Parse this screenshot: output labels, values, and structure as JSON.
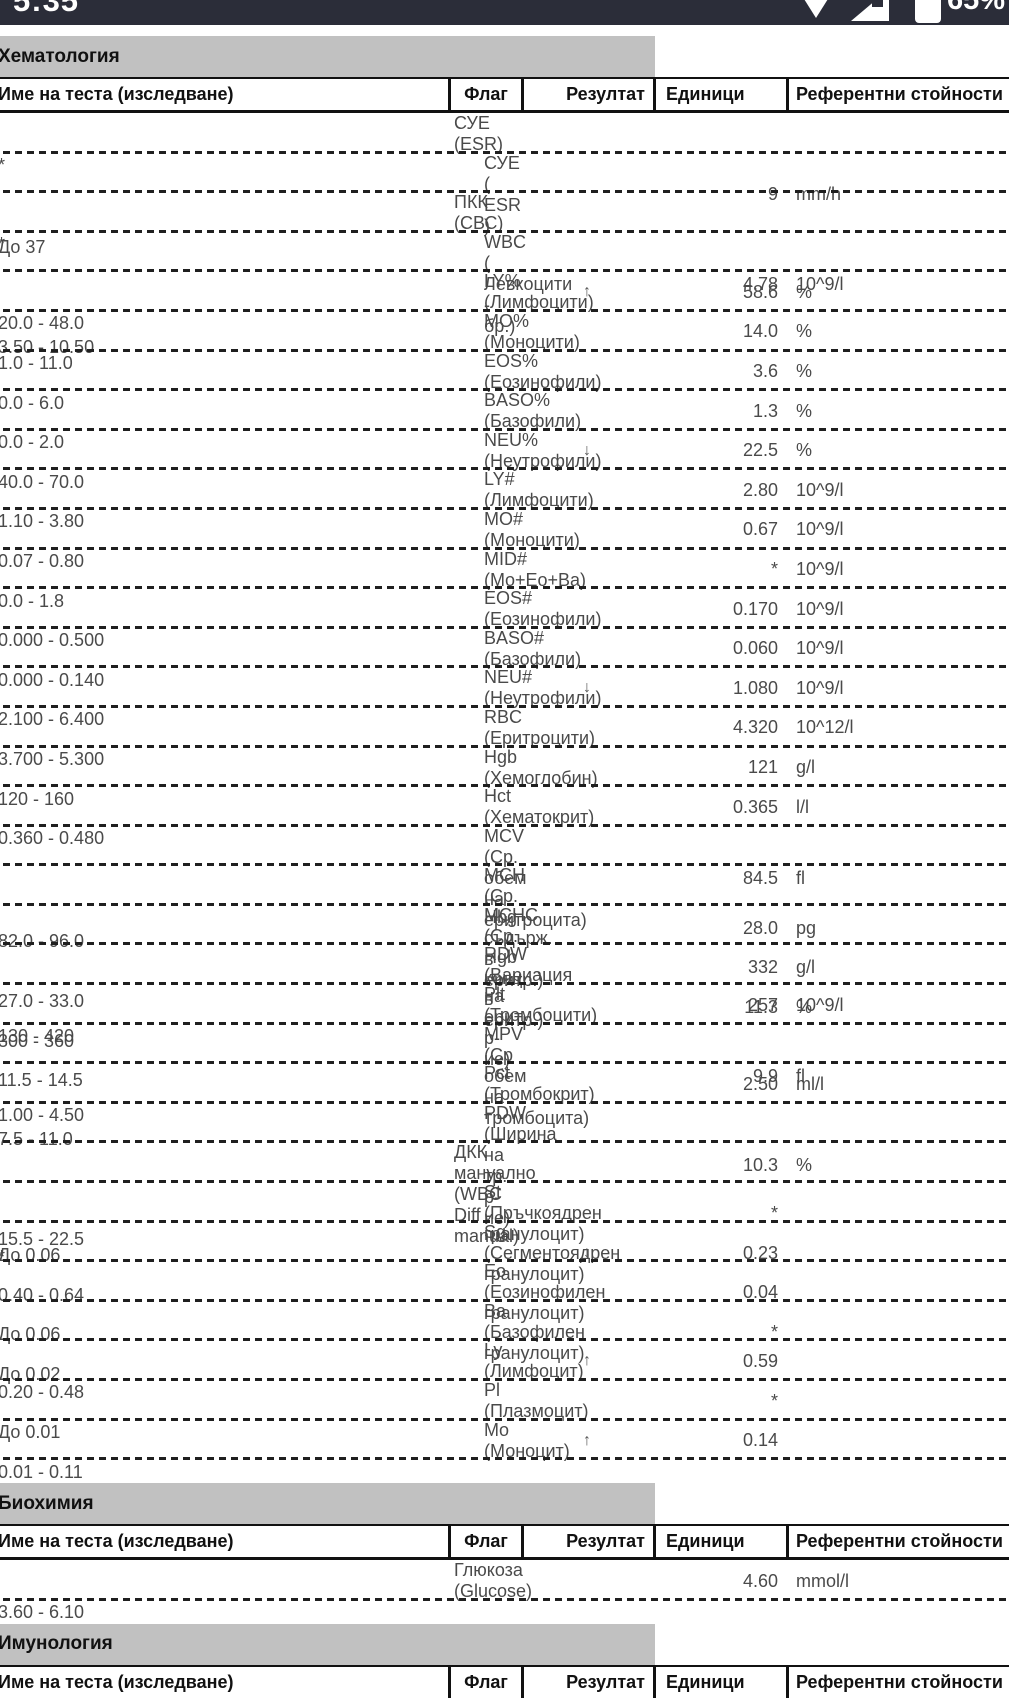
{
  "status_bar": {
    "time": "5:35",
    "battery_percent": "65%"
  },
  "icons": {
    "flag_up": "↑",
    "flag_down": "↓",
    "wifi": "wifi-icon",
    "cellular": "cellular-signal-icon",
    "battery": "battery-icon"
  },
  "colors": {
    "status_bar_bg": "#2b2d39",
    "section_banner": "#c1c1c1",
    "flag_high": "#f7b1b1",
    "flag_low": "#bdd9f2",
    "masked": "#8d8d8d",
    "body_text": "#4a4a4a"
  },
  "table_headers": {
    "name": "Име на теста (изследване)",
    "flag": "Флаг",
    "result": "Резултат",
    "units": "Единици",
    "reference": "Референтни стойности"
  },
  "sections": [
    {
      "title": "Хематология",
      "rows": [
        {
          "name": "СУЕ (ESR)",
          "group": true,
          "flag": "",
          "highlight": "",
          "result": "",
          "units": "",
          "reference": "*"
        },
        {
          "name": "СУЕ ( ESR )",
          "group": false,
          "flag": "",
          "highlight": "",
          "result": "9",
          "units": "mm/h",
          "reference": "До 37"
        },
        {
          "name": "ПКК (СВС)",
          "group": true,
          "flag": "",
          "highlight": "",
          "result": "",
          "units": "",
          "reference": "*"
        },
        {
          "name": "WBC ( Левкоцити - бр.)",
          "group": false,
          "flag": "",
          "highlight": "",
          "result": "4.78",
          "units": "10^9/l",
          "reference": "3.50 - 10.50"
        },
        {
          "name": "LY% (Лимфоцити)",
          "group": false,
          "flag": "up",
          "highlight": "high",
          "result": "58.6",
          "units": "%",
          "reference": "20.0 - 48.0"
        },
        {
          "name": "MO% (Моноцити)",
          "group": false,
          "flag": "",
          "highlight": "",
          "result": "14.0",
          "units": "%",
          "reference": "1.0 - 11.0"
        },
        {
          "name": "EOS% (Еозинофили)",
          "group": false,
          "flag": "",
          "highlight": "",
          "result": "3.6",
          "units": "%",
          "reference": "0.0 - 6.0"
        },
        {
          "name": "BASO% (Базофили)",
          "group": false,
          "flag": "",
          "highlight": "",
          "result": "1.3",
          "units": "%",
          "reference": "0.0 - 2.0"
        },
        {
          "name": "NEU% (Неутрофили)",
          "group": false,
          "flag": "down",
          "highlight": "low",
          "result": "22.5",
          "units": "%",
          "reference": "40.0 - 70.0"
        },
        {
          "name": "LY# (Лимфоцити)",
          "group": false,
          "flag": "",
          "highlight": "",
          "result": "2.80",
          "units": "10^9/l",
          "reference": "1.10 - 3.80"
        },
        {
          "name": "MO# (Моноцити)",
          "group": false,
          "flag": "",
          "highlight": "",
          "result": "0.67",
          "units": "10^9/l",
          "reference": "0.07 - 0.80"
        },
        {
          "name": "MID# (Mo+Eo+Ba)",
          "group": false,
          "flag": "",
          "highlight": "masked",
          "result": "*",
          "units": "10^9/l",
          "reference": "0.0 - 1.8"
        },
        {
          "name": "EOS# (Еозинофили)",
          "group": false,
          "flag": "",
          "highlight": "",
          "result": "0.170",
          "units": "10^9/l",
          "reference": "0.000 - 0.500"
        },
        {
          "name": "BASO# (Базофили)",
          "group": false,
          "flag": "",
          "highlight": "",
          "result": "0.060",
          "units": "10^9/l",
          "reference": "0.000 - 0.140"
        },
        {
          "name": "NEU# (Неутрофили)",
          "group": false,
          "flag": "down",
          "highlight": "low",
          "result": "1.080",
          "units": "10^9/l",
          "reference": "2.100 - 6.400"
        },
        {
          "name": "RBC (Еритроцити)",
          "group": false,
          "flag": "",
          "highlight": "",
          "result": "4.320",
          "units": "10^12/l",
          "reference": "3.700 - 5.300"
        },
        {
          "name": "Hgb (Хемоглобин)",
          "group": false,
          "flag": "",
          "highlight": "",
          "result": "121",
          "units": "g/l",
          "reference": "120 - 160"
        },
        {
          "name": "Hct (Хематокрит)",
          "group": false,
          "flag": "",
          "highlight": "",
          "result": "0.365",
          "units": "l/l",
          "reference": "0.360 - 0.480"
        },
        {
          "name": "MCV (Ср. обем на еритроцита)",
          "group": false,
          "flag": "",
          "highlight": "",
          "result": "84.5",
          "units": "fl",
          "reference": "82.0 - 96.0"
        },
        {
          "name": "MCH (Ср. Hbg съдърж. в еритр.)",
          "group": false,
          "flag": "",
          "highlight": "",
          "result": "28.0",
          "units": "pg",
          "reference": "27.0 - 33.0"
        },
        {
          "name": "MCHC (Ср. Hgb конц. в еритр.)",
          "group": false,
          "flag": "",
          "highlight": "",
          "result": "332",
          "units": "g/l",
          "reference": "300 - 360"
        },
        {
          "name": "RDW (Вариация на ерит. р-ие)",
          "group": false,
          "flag": "",
          "highlight": "",
          "result": "11.3",
          "units": "%",
          "reference": "11.5 - 14.5"
        },
        {
          "name": "Plt (Тромбоцити)",
          "group": false,
          "flag": "",
          "highlight": "",
          "result": "257",
          "units": "10^9/l",
          "reference": "130 - 420"
        },
        {
          "name": "MPV (Ср обем на тромбоцита)",
          "group": false,
          "flag": "",
          "highlight": "",
          "result": "9.9",
          "units": "fl",
          "reference": "7.5 - 11.0"
        },
        {
          "name": "Pct (Тромбокрит)",
          "group": false,
          "flag": "",
          "highlight": "",
          "result": "2.50",
          "units": "ml/l",
          "reference": "1.00 - 4.50"
        },
        {
          "name": "PDW (Ширина на тр. р-ие)",
          "group": false,
          "flag": "",
          "highlight": "",
          "result": "10.3",
          "units": "%",
          "reference": "15.5 - 22.5"
        },
        {
          "name": "ДКК мануално (WBC Diff - manual)",
          "group": true,
          "flag": "",
          "highlight": "",
          "result": "",
          "units": "",
          "reference": "*"
        },
        {
          "name": "St (Пръчкоядрен гранулоцит)",
          "group": false,
          "flag": "",
          "highlight": "masked",
          "result": "*",
          "units": "",
          "reference": "До 0.06"
        },
        {
          "name": "Sg (Сегментоядрен гранулоцит)",
          "group": false,
          "flag": "down",
          "highlight": "low",
          "result": "0.23",
          "units": "",
          "reference": "0.40 - 0.64"
        },
        {
          "name": "Eo (Еозинофилен гранулоцит)",
          "group": false,
          "flag": "",
          "highlight": "",
          "result": "0.04",
          "units": "",
          "reference": "До 0.06"
        },
        {
          "name": "Ba (Базофилен гранулоцит)",
          "group": false,
          "flag": "",
          "highlight": "masked",
          "result": "*",
          "units": "",
          "reference": "До 0.02"
        },
        {
          "name": "Ly (Лимфоцит)",
          "group": false,
          "flag": "up",
          "highlight": "high",
          "result": "0.59",
          "units": "",
          "reference": "0.20 - 0.48"
        },
        {
          "name": "Pl (Плазмоцит)",
          "group": false,
          "flag": "",
          "highlight": "masked",
          "result": "*",
          "units": "",
          "reference": "До 0.01"
        },
        {
          "name": "Mo (Моноцит)",
          "group": false,
          "flag": "up",
          "highlight": "high",
          "result": "0.14",
          "units": "",
          "reference": "0.01 - 0.11"
        }
      ]
    },
    {
      "title": "Биохимия",
      "rows": [
        {
          "name": "Глюкоза (Glucose)",
          "group": true,
          "flag": "",
          "highlight": "",
          "result": "4.60",
          "units": "mmol/l",
          "reference": "3.60 - 6.10"
        }
      ]
    },
    {
      "title": "Имунология",
      "rows": []
    }
  ]
}
